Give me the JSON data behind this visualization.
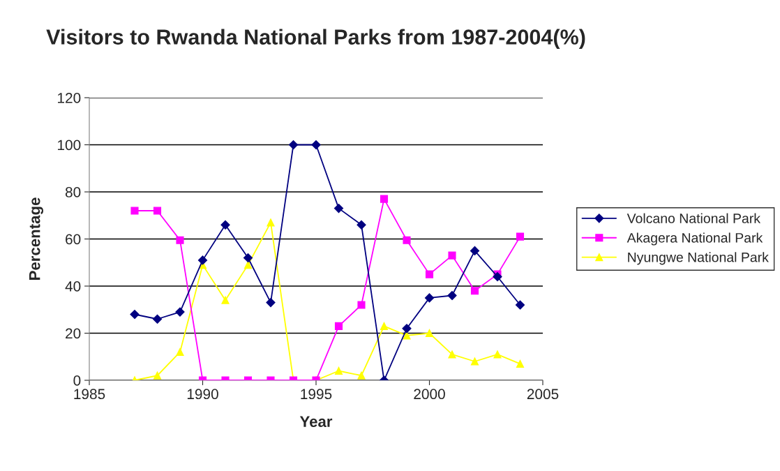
{
  "chart_data": {
    "type": "line",
    "title": "Visitors to Rwanda National Parks from 1987-2004(%)",
    "xlabel": "Year",
    "ylabel": "Percentage",
    "x": [
      1987,
      1988,
      1989,
      1990,
      1991,
      1992,
      1993,
      1994,
      1995,
      1996,
      1997,
      1998,
      1999,
      2000,
      2001,
      2002,
      2003,
      2004
    ],
    "series": [
      {
        "name": "Volcano National Park",
        "color": "#000080",
        "marker": "diamond",
        "values": [
          28,
          26,
          29,
          51,
          66,
          52,
          33,
          100,
          100,
          73,
          66,
          0,
          22,
          35,
          36,
          55,
          44,
          32
        ]
      },
      {
        "name": "Akagera National Park",
        "color": "#ff00ff",
        "marker": "square",
        "values": [
          72,
          72,
          59.5,
          0,
          0,
          0,
          0,
          0,
          0,
          23,
          32,
          77,
          59.5,
          45,
          53,
          38,
          45,
          61
        ]
      },
      {
        "name": "Nyungwe National Park",
        "color": "#ffff00",
        "marker": "triangle",
        "values": [
          0,
          2,
          12,
          49,
          34,
          49,
          67,
          0,
          0,
          4,
          2,
          23,
          19,
          20,
          11,
          8,
          11,
          7
        ]
      }
    ],
    "xlim": [
      1985,
      2005
    ],
    "xticks": [
      1985,
      1990,
      1995,
      2000,
      2005
    ],
    "ylim": [
      0,
      120
    ],
    "yticks": [
      0,
      20,
      40,
      60,
      80,
      100,
      120
    ],
    "grid": "y",
    "legend": "right",
    "line_style": "solid"
  }
}
